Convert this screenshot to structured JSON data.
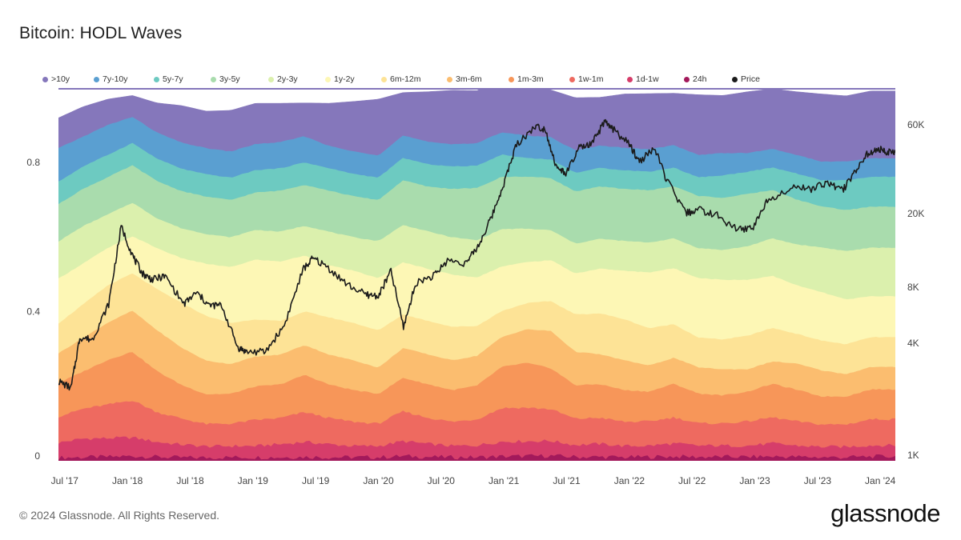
{
  "title": "Bitcoin: HODL Waves",
  "footer": "© 2024 Glassnode. All Rights Reserved.",
  "brand": "glassnode",
  "chart_data": {
    "type": "area",
    "stacked": true,
    "title": "Bitcoin: HODL Waves",
    "x": [
      2017.45,
      2017.6,
      2017.8,
      2018.0,
      2018.2,
      2018.4,
      2018.6,
      2018.8,
      2019.0,
      2019.2,
      2019.4,
      2019.6,
      2019.8,
      2020.0,
      2020.2,
      2020.4,
      2020.6,
      2020.8,
      2021.0,
      2021.2,
      2021.4,
      2021.6,
      2021.8,
      2022.0,
      2022.2,
      2022.4,
      2022.6,
      2022.8,
      2023.0,
      2023.2,
      2023.4,
      2023.6,
      2023.8,
      2024.0,
      2024.12
    ],
    "x_ticks": [
      "Jul '17",
      "Jan '18",
      "Jul '18",
      "Jan '19",
      "Jul '19",
      "Jan '20",
      "Jul '20",
      "Jan '21",
      "Jul '21",
      "Jan '22",
      "Jul '22",
      "Jan '23",
      "Jul '23",
      "Jan '24"
    ],
    "x_tick_values": [
      2017.5,
      2018.0,
      2018.5,
      2019.0,
      2019.5,
      2020.0,
      2020.5,
      2021.0,
      2021.5,
      2022.0,
      2022.5,
      2023.0,
      2023.5,
      2024.0
    ],
    "y_left": {
      "ticks": [
        "0",
        "0.4",
        "0.8"
      ],
      "tick_values": [
        0,
        0.4,
        0.8
      ],
      "ylim": [
        0,
        1
      ]
    },
    "y_right": {
      "scale": "log",
      "ticks": [
        "1K",
        "4K",
        "8K",
        "20K",
        "60K"
      ],
      "tick_values": [
        1000,
        4000,
        8000,
        20000,
        60000
      ]
    },
    "grid": false,
    "legend_position": "top-left",
    "series": [
      {
        "name": "24h",
        "color": "#a3195b",
        "values": [
          0.008,
          0.009,
          0.01,
          0.012,
          0.01,
          0.008,
          0.008,
          0.009,
          0.009,
          0.009,
          0.01,
          0.009,
          0.009,
          0.009,
          0.012,
          0.01,
          0.009,
          0.009,
          0.011,
          0.012,
          0.013,
          0.01,
          0.01,
          0.009,
          0.01,
          0.011,
          0.01,
          0.01,
          0.01,
          0.011,
          0.01,
          0.009,
          0.009,
          0.011,
          0.011
        ]
      },
      {
        "name": "1d-1w",
        "color": "#d63d6a",
        "values": [
          0.04,
          0.05,
          0.05,
          0.05,
          0.04,
          0.035,
          0.03,
          0.03,
          0.03,
          0.035,
          0.04,
          0.035,
          0.03,
          0.03,
          0.04,
          0.035,
          0.03,
          0.032,
          0.04,
          0.04,
          0.04,
          0.032,
          0.035,
          0.03,
          0.03,
          0.035,
          0.03,
          0.03,
          0.03,
          0.035,
          0.03,
          0.028,
          0.028,
          0.03,
          0.03
        ]
      },
      {
        "name": "1w-1m",
        "color": "#ee6a60",
        "values": [
          0.07,
          0.08,
          0.09,
          0.1,
          0.08,
          0.07,
          0.06,
          0.06,
          0.07,
          0.07,
          0.08,
          0.07,
          0.065,
          0.06,
          0.08,
          0.07,
          0.065,
          0.07,
          0.09,
          0.09,
          0.085,
          0.07,
          0.07,
          0.065,
          0.065,
          0.07,
          0.06,
          0.06,
          0.065,
          0.07,
          0.065,
          0.06,
          0.06,
          0.07,
          0.07
        ]
      },
      {
        "name": "1m-3m",
        "color": "#f79659",
        "values": [
          0.09,
          0.1,
          0.12,
          0.13,
          0.11,
          0.09,
          0.08,
          0.08,
          0.09,
          0.09,
          0.1,
          0.09,
          0.085,
          0.08,
          0.09,
          0.09,
          0.085,
          0.09,
          0.11,
          0.12,
          0.11,
          0.09,
          0.09,
          0.085,
          0.08,
          0.09,
          0.08,
          0.075,
          0.08,
          0.09,
          0.085,
          0.075,
          0.075,
          0.08,
          0.08
        ]
      },
      {
        "name": "3m-6m",
        "color": "#fbbd6f",
        "values": [
          0.08,
          0.09,
          0.1,
          0.11,
          0.11,
          0.1,
          0.09,
          0.08,
          0.08,
          0.08,
          0.08,
          0.08,
          0.08,
          0.07,
          0.08,
          0.08,
          0.08,
          0.08,
          0.08,
          0.09,
          0.1,
          0.09,
          0.08,
          0.08,
          0.07,
          0.07,
          0.07,
          0.07,
          0.06,
          0.06,
          0.07,
          0.07,
          0.06,
          0.06,
          0.06
        ]
      },
      {
        "name": "6m-12m",
        "color": "#fde396",
        "values": [
          0.08,
          0.09,
          0.1,
          0.1,
          0.11,
          0.12,
          0.12,
          0.11,
          0.1,
          0.09,
          0.09,
          0.1,
          0.1,
          0.1,
          0.09,
          0.09,
          0.09,
          0.08,
          0.07,
          0.07,
          0.08,
          0.1,
          0.11,
          0.11,
          0.1,
          0.09,
          0.08,
          0.08,
          0.09,
          0.09,
          0.08,
          0.08,
          0.08,
          0.08,
          0.08
        ]
      },
      {
        "name": "1y-2y",
        "color": "#fdf7b5",
        "values": [
          0.12,
          0.11,
          0.1,
          0.1,
          0.11,
          0.12,
          0.14,
          0.15,
          0.16,
          0.16,
          0.15,
          0.14,
          0.14,
          0.14,
          0.14,
          0.14,
          0.14,
          0.13,
          0.12,
          0.11,
          0.11,
          0.11,
          0.12,
          0.13,
          0.15,
          0.15,
          0.16,
          0.16,
          0.15,
          0.14,
          0.13,
          0.13,
          0.12,
          0.11,
          0.11
        ]
      },
      {
        "name": "2y-3y",
        "color": "#dbf0ad",
        "values": [
          0.1,
          0.1,
          0.09,
          0.09,
          0.08,
          0.08,
          0.08,
          0.08,
          0.08,
          0.08,
          0.08,
          0.09,
          0.09,
          0.1,
          0.1,
          0.1,
          0.1,
          0.1,
          0.1,
          0.09,
          0.08,
          0.08,
          0.08,
          0.08,
          0.08,
          0.08,
          0.08,
          0.08,
          0.09,
          0.1,
          0.11,
          0.12,
          0.13,
          0.13,
          0.13
        ]
      },
      {
        "name": "3y-5y",
        "color": "#a9dcad",
        "values": [
          0.1,
          0.1,
          0.1,
          0.1,
          0.1,
          0.1,
          0.1,
          0.1,
          0.1,
          0.11,
          0.11,
          0.11,
          0.11,
          0.11,
          0.12,
          0.12,
          0.13,
          0.14,
          0.14,
          0.14,
          0.14,
          0.14,
          0.14,
          0.14,
          0.14,
          0.14,
          0.14,
          0.14,
          0.14,
          0.13,
          0.12,
          0.11,
          0.11,
          0.11,
          0.11
        ]
      },
      {
        "name": "5y-7y",
        "color": "#6dcac1",
        "values": [
          0.06,
          0.06,
          0.06,
          0.06,
          0.06,
          0.06,
          0.06,
          0.06,
          0.06,
          0.06,
          0.06,
          0.06,
          0.06,
          0.06,
          0.06,
          0.06,
          0.06,
          0.06,
          0.06,
          0.05,
          0.05,
          0.05,
          0.05,
          0.05,
          0.05,
          0.05,
          0.05,
          0.06,
          0.06,
          0.06,
          0.07,
          0.07,
          0.08,
          0.08,
          0.08
        ]
      },
      {
        "name": "7y-10y",
        "color": "#5a9fd1",
        "values": [
          0.09,
          0.08,
          0.08,
          0.07,
          0.07,
          0.07,
          0.07,
          0.07,
          0.07,
          0.07,
          0.07,
          0.06,
          0.06,
          0.06,
          0.06,
          0.06,
          0.06,
          0.06,
          0.06,
          0.06,
          0.06,
          0.06,
          0.06,
          0.06,
          0.06,
          0.06,
          0.06,
          0.06,
          0.05,
          0.05,
          0.05,
          0.05,
          0.05,
          0.05,
          0.05
        ]
      },
      {
        "name": ">10y",
        "color": "#8577bb",
        "values": [
          0.082,
          0.081,
          0.07,
          0.058,
          0.08,
          0.1,
          0.1,
          0.111,
          0.11,
          0.105,
          0.09,
          0.115,
          0.135,
          0.151,
          0.116,
          0.135,
          0.145,
          0.142,
          0.142,
          0.138,
          0.127,
          0.142,
          0.13,
          0.145,
          0.15,
          0.14,
          0.162,
          0.155,
          0.165,
          0.162,
          0.17,
          0.182,
          0.177,
          0.181,
          0.181
        ]
      }
    ],
    "price": {
      "name": "Price",
      "color": "#1b1b1b",
      "axis": "y_right",
      "points": [
        [
          2017.45,
          2500
        ],
        [
          2017.55,
          2300
        ],
        [
          2017.62,
          4300
        ],
        [
          2017.72,
          4200
        ],
        [
          2017.85,
          6500
        ],
        [
          2017.95,
          17000
        ],
        [
          2018.05,
          11500
        ],
        [
          2018.12,
          9500
        ],
        [
          2018.2,
          8800
        ],
        [
          2018.3,
          9200
        ],
        [
          2018.45,
          6500
        ],
        [
          2018.55,
          7500
        ],
        [
          2018.65,
          6400
        ],
        [
          2018.75,
          6400
        ],
        [
          2018.88,
          3800
        ],
        [
          2018.95,
          3600
        ],
        [
          2019.1,
          3600
        ],
        [
          2019.25,
          5000
        ],
        [
          2019.4,
          10000
        ],
        [
          2019.48,
          11500
        ],
        [
          2019.6,
          10200
        ],
        [
          2019.75,
          8300
        ],
        [
          2019.9,
          7300
        ],
        [
          2020.0,
          7200
        ],
        [
          2020.1,
          9800
        ],
        [
          2020.2,
          4900
        ],
        [
          2020.3,
          8500
        ],
        [
          2020.45,
          9300
        ],
        [
          2020.55,
          11200
        ],
        [
          2020.7,
          10800
        ],
        [
          2020.8,
          13500
        ],
        [
          2020.9,
          19000
        ],
        [
          2021.0,
          29000
        ],
        [
          2021.1,
          47000
        ],
        [
          2021.25,
          59000
        ],
        [
          2021.33,
          57000
        ],
        [
          2021.42,
          35000
        ],
        [
          2021.5,
          33000
        ],
        [
          2021.6,
          45000
        ],
        [
          2021.7,
          47000
        ],
        [
          2021.8,
          62000
        ],
        [
          2021.87,
          57000
        ],
        [
          2022.0,
          47000
        ],
        [
          2022.08,
          38000
        ],
        [
          2022.2,
          45000
        ],
        [
          2022.3,
          30000
        ],
        [
          2022.45,
          20000
        ],
        [
          2022.55,
          21000
        ],
        [
          2022.7,
          19500
        ],
        [
          2022.85,
          16500
        ],
        [
          2022.98,
          16600
        ],
        [
          2023.1,
          23500
        ],
        [
          2023.3,
          28000
        ],
        [
          2023.45,
          27000
        ],
        [
          2023.58,
          29500
        ],
        [
          2023.7,
          26500
        ],
        [
          2023.8,
          34000
        ],
        [
          2023.9,
          42000
        ],
        [
          2024.0,
          44000
        ],
        [
          2024.05,
          43000
        ],
        [
          2024.12,
          42500
        ]
      ]
    },
    "legend": [
      ">10y",
      "7y-10y",
      "5y-7y",
      "3y-5y",
      "2y-3y",
      "1y-2y",
      "6m-12m",
      "3m-6m",
      "1m-3m",
      "1w-1m",
      "1d-1w",
      "24h",
      "Price"
    ]
  }
}
